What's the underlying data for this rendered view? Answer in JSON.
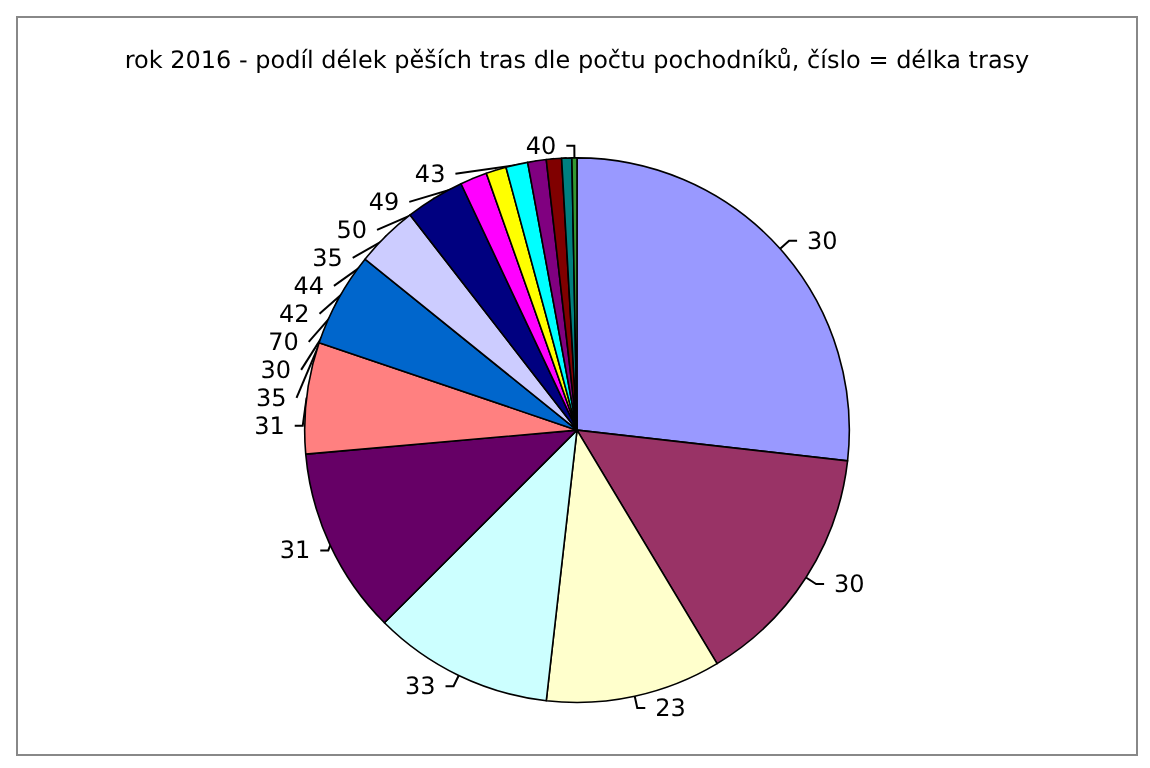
{
  "chart_data": {
    "type": "pie",
    "title": "rok 2016 - podíl délek pěších tras dle počtu pochodníků, číslo = délka trasy",
    "categories": [
      "30",
      "30",
      "23",
      "33",
      "31",
      "31",
      "35",
      "30",
      "70",
      "42",
      "44",
      "35",
      "50",
      "49",
      "43",
      "40"
    ],
    "values": [
      26.8,
      14.6,
      10.4,
      10.7,
      11.1,
      6.6,
      5.6,
      3.7,
      3.5,
      1.6,
      1.2,
      1.3,
      1.1,
      0.9,
      0.6,
      0.3
    ],
    "colors": [
      "#9999ff",
      "#993366",
      "#ffffcc",
      "#ccffff",
      "#660066",
      "#ff8080",
      "#0066cc",
      "#ccccff",
      "#000080",
      "#ff00ff",
      "#ffff00",
      "#00ffff",
      "#800080",
      "#800000",
      "#008080",
      "#339933"
    ],
    "legend": false
  }
}
